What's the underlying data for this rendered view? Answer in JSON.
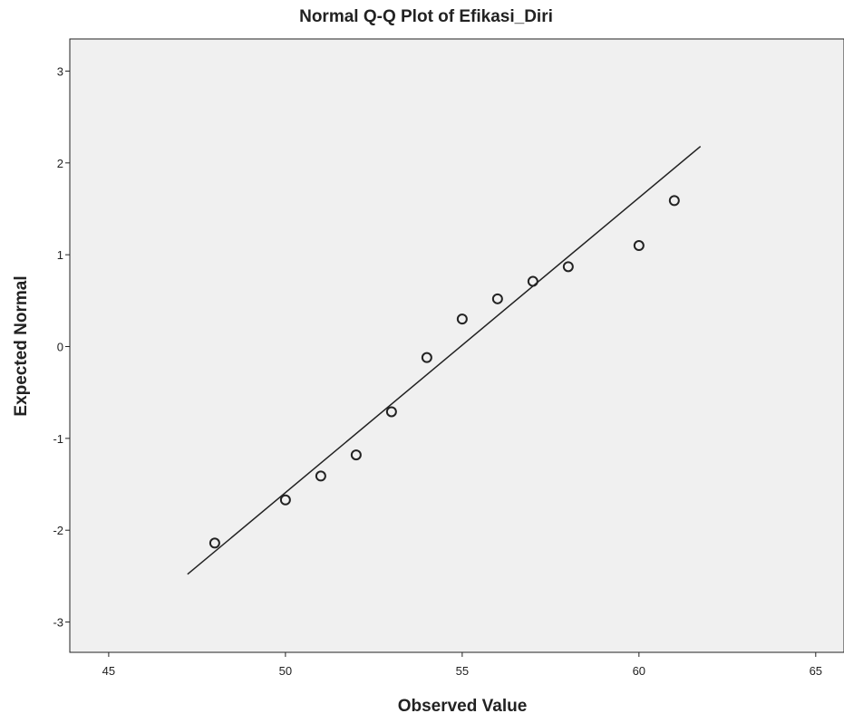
{
  "chart_data": {
    "type": "scatter",
    "title": "Normal Q-Q Plot of Efikasi_Diri",
    "x_label": "Observed Value",
    "y_label": "Expected Normal",
    "xlim": [
      43.9,
      65.8
    ],
    "ylim": [
      -3.33,
      3.35
    ],
    "xticks": [
      45,
      50,
      55,
      60,
      65
    ],
    "yticks": [
      -3,
      -2,
      -1,
      0,
      1,
      2,
      3
    ],
    "grid": false,
    "series": [
      {
        "x": [
          48,
          50,
          51,
          52,
          53,
          54,
          55,
          56,
          57,
          58,
          60,
          61
        ],
        "values": [
          -2.14,
          -1.67,
          -1.41,
          -1.18,
          -0.71,
          -0.12,
          0.3,
          0.52,
          0.71,
          0.87,
          1.1,
          1.59
        ],
        "color": "#222222"
      }
    ],
    "reference_line": {
      "x": [
        47.23,
        61.74
      ],
      "y": [
        -2.48,
        2.18
      ],
      "color": "#222222"
    }
  }
}
